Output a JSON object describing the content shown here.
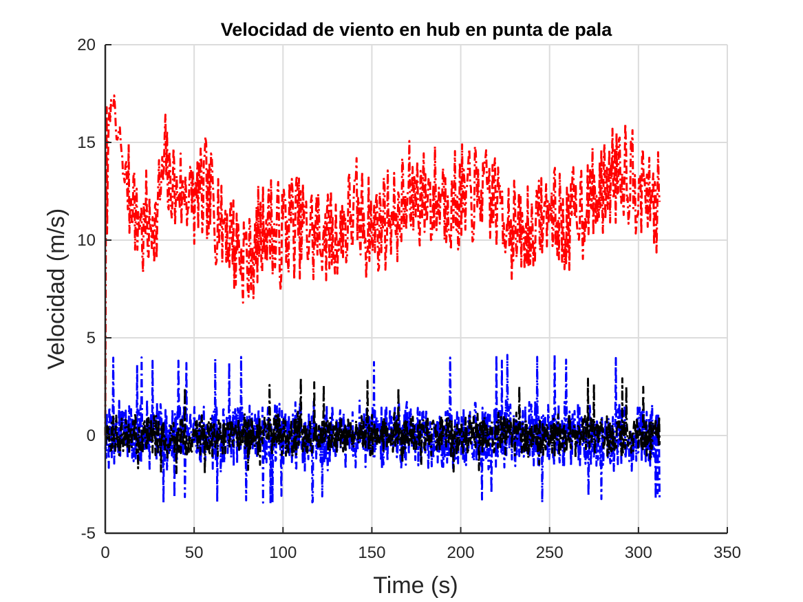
{
  "chart_data": {
    "type": "line",
    "title": "Velocidad de viento en hub en punta de pala",
    "xlabel": "Time (s)",
    "ylabel": "Velocidad (m/s)",
    "xlim": [
      0,
      350
    ],
    "ylim": [
      -5,
      20
    ],
    "xticks": [
      "0",
      "50",
      "100",
      "150",
      "200",
      "250",
      "300",
      "350"
    ],
    "yticks": [
      "-5",
      "0",
      "5",
      "10",
      "15",
      "20"
    ],
    "grid": true,
    "line_style": "dash-dot",
    "series": [
      {
        "color": "#ff0000",
        "x": [
          0,
          1,
          2,
          3,
          4,
          6,
          8,
          10,
          12,
          15,
          18,
          22,
          26,
          30,
          33,
          36,
          40,
          45,
          50,
          55,
          60,
          65,
          70,
          75,
          80,
          85,
          88,
          92,
          96,
          100,
          105,
          110,
          115,
          120,
          125,
          130,
          135,
          140,
          145,
          150,
          155,
          160,
          165,
          170,
          175,
          180,
          185,
          190,
          195,
          200,
          205,
          210,
          215,
          220,
          225,
          230,
          235,
          240,
          245,
          250,
          255,
          260,
          265,
          270,
          275,
          280,
          285,
          290,
          295,
          300,
          305,
          310,
          312
        ],
        "values": [
          0,
          10,
          16.5,
          17.3,
          17,
          16,
          15,
          14,
          13,
          12.5,
          11,
          10.5,
          10.8,
          11.5,
          14,
          13,
          12.5,
          12.6,
          12,
          12.5,
          12,
          11,
          10.5,
          9.5,
          9,
          9.5,
          10.5,
          11,
          10,
          10.5,
          11,
          10.8,
          10.5,
          10.2,
          10.5,
          10,
          10.8,
          11.5,
          11,
          10.5,
          11,
          11.5,
          11,
          12,
          12.5,
          12.3,
          12,
          12.5,
          11.8,
          12,
          12,
          12.3,
          12.5,
          12,
          11.5,
          10.5,
          10,
          10.5,
          11,
          11.5,
          11,
          10.5,
          11.5,
          12,
          12,
          12.5,
          13.5,
          14,
          13.5,
          13,
          12.5,
          12,
          11.5
        ]
      },
      {
        "color": "#0000ff",
        "x": [
          0,
          312
        ],
        "values": [
          0,
          0
        ],
        "range": [
          -3.5,
          4.2
        ]
      },
      {
        "color": "#000000",
        "x": [
          0,
          312
        ],
        "values": [
          0,
          0
        ],
        "range": [
          -2,
          3
        ]
      }
    ]
  }
}
